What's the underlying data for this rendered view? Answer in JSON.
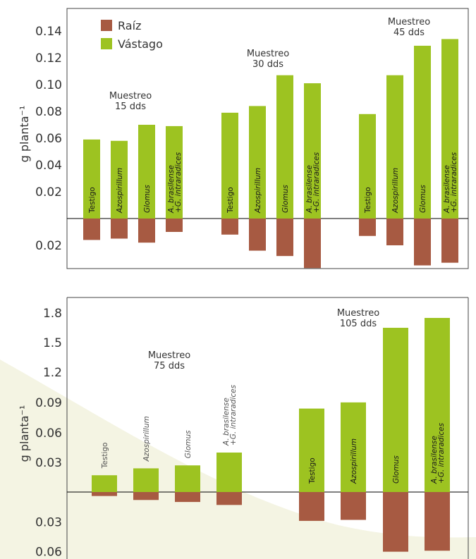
{
  "colors": {
    "vastago": "#9dc321",
    "raiz": "#a75a42",
    "background_shape": "#f4f4e3",
    "axis": "#444444",
    "text": "#333333"
  },
  "chart_data": [
    {
      "type": "bar",
      "panel": "top",
      "ylabel": "g planta⁻¹",
      "legend": {
        "placement": "top-left",
        "entries": [
          {
            "name": "Raíz",
            "color": "#a75a42"
          },
          {
            "name": "Vástago",
            "color": "#9dc321"
          }
        ]
      },
      "y_ticks_up": [
        "0.02",
        "0.04",
        "0.06",
        "0.08",
        "0.10",
        "0.12",
        "0.14"
      ],
      "y_ticks_down": [
        "0.02"
      ],
      "ylim_up": [
        0,
        0.14
      ],
      "ylim_down": [
        0,
        0.04
      ],
      "groups": [
        {
          "label": [
            "Muestreo",
            "15 dds"
          ],
          "categories": [
            "Testigo",
            "Azospirillum",
            "Glomus",
            "A. brasilense\n+G. intraradices"
          ],
          "vastago": [
            0.059,
            0.058,
            0.07,
            0.069
          ],
          "raiz": [
            0.016,
            0.015,
            0.018,
            0.01
          ]
        },
        {
          "label": [
            "Muestreo",
            "30 dds"
          ],
          "categories": [
            "Testigo",
            "Azospirillum",
            "Glomus",
            "A. brasilense\n+G. intraradices"
          ],
          "vastago": [
            0.079,
            0.084,
            0.107,
            0.101
          ],
          "raiz": [
            0.012,
            0.024,
            0.028,
            0.037
          ]
        },
        {
          "label": [
            "Muestreo",
            "45 dds"
          ],
          "categories": [
            "Testigo",
            "Azospirillum",
            "Glomus",
            "A. brasilense\n+G. intraradices"
          ],
          "vastago": [
            0.078,
            0.107,
            0.129,
            0.134
          ],
          "raiz": [
            0.013,
            0.02,
            0.035,
            0.033
          ]
        }
      ]
    },
    {
      "type": "bar",
      "panel": "bottom",
      "ylabel": "g planta⁻¹",
      "y_ticks_up": [
        "0.03",
        "0.06",
        "0.09",
        "1.2",
        "1.5",
        "1.8"
      ],
      "y_ticks_down": [
        "0.03",
        "0.06"
      ],
      "groups": [
        {
          "label": [
            "Muestreo",
            "75 dds"
          ],
          "categories": [
            "Testigo",
            "Azospirillum",
            "Glomus",
            "A. brasilense\n+G. intraradices"
          ],
          "vastago": [
            0.017,
            0.024,
            0.027,
            0.04
          ],
          "raiz": [
            0.004,
            0.008,
            0.01,
            0.013
          ]
        },
        {
          "label": [
            "Muestreo",
            "105 dds"
          ],
          "categories": [
            "Testigo",
            "Azospirillum",
            "Glomus",
            "A. brasilense\n+G. intraradices"
          ],
          "vastago": [
            0.084,
            0.094,
            1.65,
            1.75
          ],
          "raiz": [
            0.029,
            0.028,
            0.06,
            0.059
          ]
        }
      ]
    }
  ]
}
